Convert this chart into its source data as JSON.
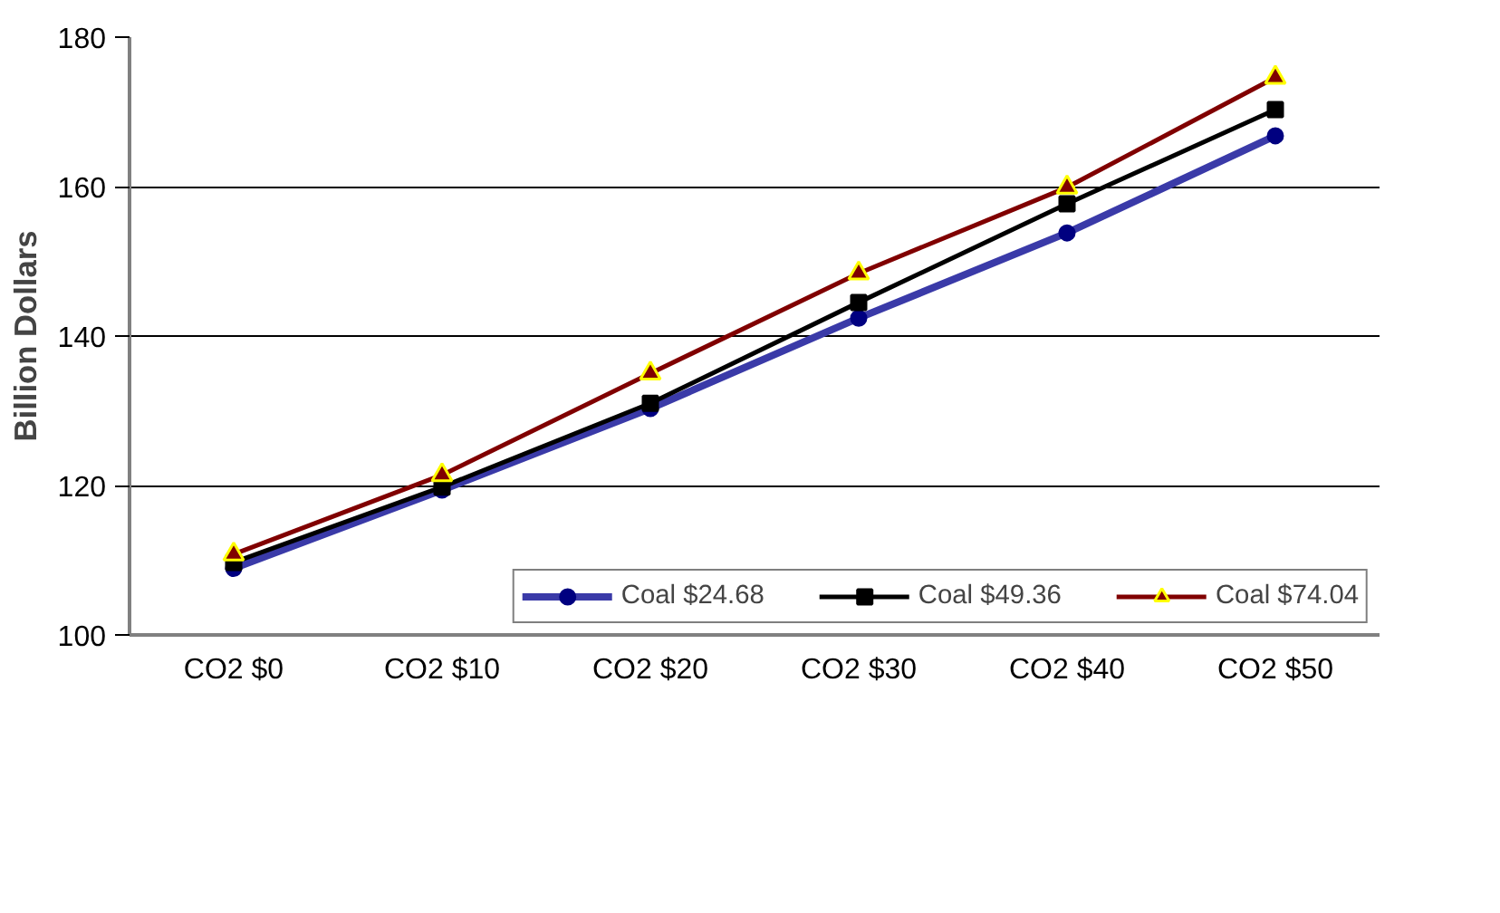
{
  "chart_data": {
    "type": "line",
    "ylabel": "Billion Dollars",
    "categories": [
      "CO2 $0",
      "CO2 $10",
      "CO2 $20",
      "CO2 $30",
      "CO2 $40",
      "CO2 $50"
    ],
    "series": [
      {
        "name": "Coal $24.68",
        "color": "#000080",
        "marker": "circle",
        "values": [
          108.9,
          119.4,
          130.3,
          142.4,
          153.8,
          166.8
        ]
      },
      {
        "name": "Coal $49.36",
        "color": "#000000",
        "marker": "square",
        "values": [
          109.7,
          119.8,
          131.0,
          144.5,
          157.7,
          170.3
        ]
      },
      {
        "name": "Coal $74.04",
        "color": "#800000",
        "marker": "triangle",
        "values": [
          110.8,
          121.4,
          135.0,
          148.4,
          159.9,
          174.6
        ]
      }
    ],
    "ylim": [
      100,
      180
    ],
    "yticks": [
      100,
      120,
      140,
      160,
      180
    ],
    "grid": "y",
    "legend": "bottom",
    "line_style": "solid"
  }
}
